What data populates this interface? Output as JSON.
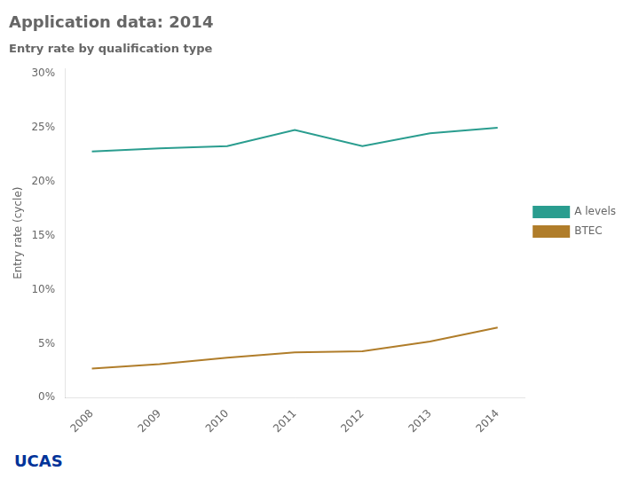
{
  "chart_data": {
    "type": "line",
    "title": "Application data: 2014",
    "subtitle": "Entry rate by qualification type",
    "x": [
      2008,
      2009,
      2010,
      2011,
      2012,
      2013,
      2014
    ],
    "series": [
      {
        "name": "A levels",
        "color": "#2a9d8f",
        "values": [
          0.228,
          0.231,
          0.233,
          0.248,
          0.233,
          0.245,
          0.25
        ]
      },
      {
        "name": "BTEC",
        "color": "#b07d2a",
        "values": [
          0.027,
          0.031,
          0.037,
          0.042,
          0.043,
          0.052,
          0.065
        ]
      }
    ],
    "y_label": "Entry rate (cycle)",
    "xlim": [
      2007.6,
      2014.4
    ],
    "xticks": [
      2008,
      2009,
      2010,
      2011,
      2012,
      2013,
      2014
    ],
    "ylim": [
      0.0,
      0.305
    ],
    "yticks": [
      {
        "value": 0.0,
        "label": "0%"
      },
      {
        "value": 0.05,
        "label": "5%"
      },
      {
        "value": 0.1,
        "label": "10%"
      },
      {
        "value": 0.15,
        "label": "15%"
      },
      {
        "value": 0.2,
        "label": "20%"
      },
      {
        "value": 0.25,
        "label": "25%"
      },
      {
        "value": 0.3,
        "label": "30%"
      }
    ],
    "grid": false,
    "legend": "right",
    "annotations": [
      {
        "text": "UCAS",
        "color": "#003399"
      }
    ]
  }
}
